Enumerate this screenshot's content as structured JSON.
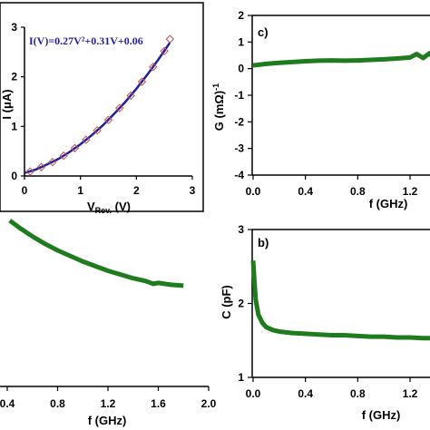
{
  "chart_data": [
    {
      "type": "line",
      "panel": "inset",
      "title": "",
      "equation": "I(V)=0.27V²+0.31V+0.06",
      "xlabel_main": "V",
      "xlabel_sub": "Rev.",
      "xlabel_unit": " (V)",
      "ylabel": "I (μA)",
      "xlim": [
        0,
        3
      ],
      "ylim": [
        0,
        3
      ],
      "xticks": [
        "0",
        "1",
        "2",
        "3"
      ],
      "yticks": [
        "0",
        "1",
        "2",
        "3"
      ],
      "series": [
        {
          "type": "line",
          "color": "#1f1fa0",
          "x": [
            0,
            0.2,
            0.4,
            0.6,
            0.8,
            1.0,
            1.2,
            1.4,
            1.6,
            1.8,
            2.0,
            2.2,
            2.4,
            2.6
          ],
          "y": [
            0.06,
            0.13,
            0.23,
            0.34,
            0.48,
            0.64,
            0.82,
            1.02,
            1.25,
            1.49,
            1.76,
            2.05,
            2.36,
            2.69
          ]
        },
        {
          "type": "scatter",
          "marker": "diamond",
          "color": "#c0504d",
          "x": [
            0.1,
            0.3,
            0.5,
            0.7,
            0.9,
            1.1,
            1.3,
            1.5,
            1.7,
            1.9,
            2.1,
            2.3,
            2.5,
            2.6
          ],
          "y": [
            0.09,
            0.18,
            0.28,
            0.41,
            0.56,
            0.73,
            0.92,
            1.13,
            1.37,
            1.62,
            1.9,
            2.2,
            2.52,
            2.76
          ]
        }
      ]
    },
    {
      "type": "line",
      "panel": "left-bottom",
      "title": "",
      "xlabel": "f (GHz)",
      "ylabel": "",
      "xlim": [
        0,
        2.0
      ],
      "xtick_values": [
        0.4,
        0.8,
        1.2,
        1.6,
        2.0
      ],
      "xticks": [
        "0.4",
        "0.8",
        "1.2",
        "1.6",
        "2.0"
      ],
      "series": [
        {
          "name": "",
          "color": "#1e7b1e",
          "x": [
            0.42,
            0.5,
            0.6,
            0.7,
            0.8,
            0.9,
            1.0,
            1.1,
            1.2,
            1.3,
            1.4,
            1.5,
            1.56,
            1.6,
            1.7,
            1.8
          ],
          "y": [
            0.93,
            0.85,
            0.76,
            0.68,
            0.61,
            0.55,
            0.49,
            0.44,
            0.39,
            0.35,
            0.31,
            0.28,
            0.25,
            0.26,
            0.24,
            0.23
          ]
        }
      ]
    },
    {
      "type": "line",
      "panel": "c",
      "label": "c)",
      "xlabel": "f (GHz)",
      "ylabel": "G (mΩ)",
      "ylabel_sup": "-1",
      "xlim": [
        0,
        1.5
      ],
      "ylim": [
        -4,
        2
      ],
      "xtick_values": [
        0,
        0.4,
        0.8,
        1.2
      ],
      "xticks": [
        "0.0",
        "0.4",
        "0.8",
        "1.2"
      ],
      "ytick_values": [
        2,
        1,
        0,
        -1,
        -2,
        -3,
        -4
      ],
      "yticks": [
        "2",
        "1",
        "0",
        "-1",
        "-2",
        "-3",
        "-4"
      ],
      "series": [
        {
          "name": "",
          "color": "#1e7b1e",
          "x": [
            0,
            0.1,
            0.2,
            0.3,
            0.4,
            0.5,
            0.6,
            0.7,
            0.8,
            0.9,
            1.0,
            1.1,
            1.2,
            1.25,
            1.3,
            1.35,
            1.4,
            1.45,
            1.5
          ],
          "y": [
            0.12,
            0.18,
            0.22,
            0.25,
            0.28,
            0.3,
            0.31,
            0.3,
            0.31,
            0.33,
            0.35,
            0.38,
            0.42,
            0.55,
            0.4,
            0.58,
            0.3,
            0.48,
            0.45
          ]
        }
      ]
    },
    {
      "type": "line",
      "panel": "b",
      "label": "b)",
      "xlabel": "f (GHz)",
      "ylabel": "C (pF)",
      "xlim": [
        0,
        1.5
      ],
      "ylim": [
        1,
        3
      ],
      "xtick_values": [
        0,
        0.4,
        0.8,
        1.2
      ],
      "xticks": [
        "0.0",
        "0.4",
        "0.8",
        "1.2"
      ],
      "ytick_values": [
        3,
        2,
        1
      ],
      "yticks": [
        "3",
        "2",
        "1"
      ],
      "series": [
        {
          "name": "",
          "color": "#1e7b1e",
          "x": [
            0,
            0.01,
            0.02,
            0.04,
            0.07,
            0.1,
            0.15,
            0.2,
            0.3,
            0.4,
            0.5,
            0.6,
            0.7,
            0.8,
            0.9,
            1.0,
            1.1,
            1.2,
            1.3,
            1.4,
            1.5
          ],
          "y": [
            2.58,
            2.3,
            2.05,
            1.85,
            1.74,
            1.68,
            1.64,
            1.62,
            1.6,
            1.59,
            1.58,
            1.57,
            1.57,
            1.56,
            1.55,
            1.55,
            1.54,
            1.54,
            1.53,
            1.53,
            1.52
          ]
        }
      ]
    }
  ]
}
